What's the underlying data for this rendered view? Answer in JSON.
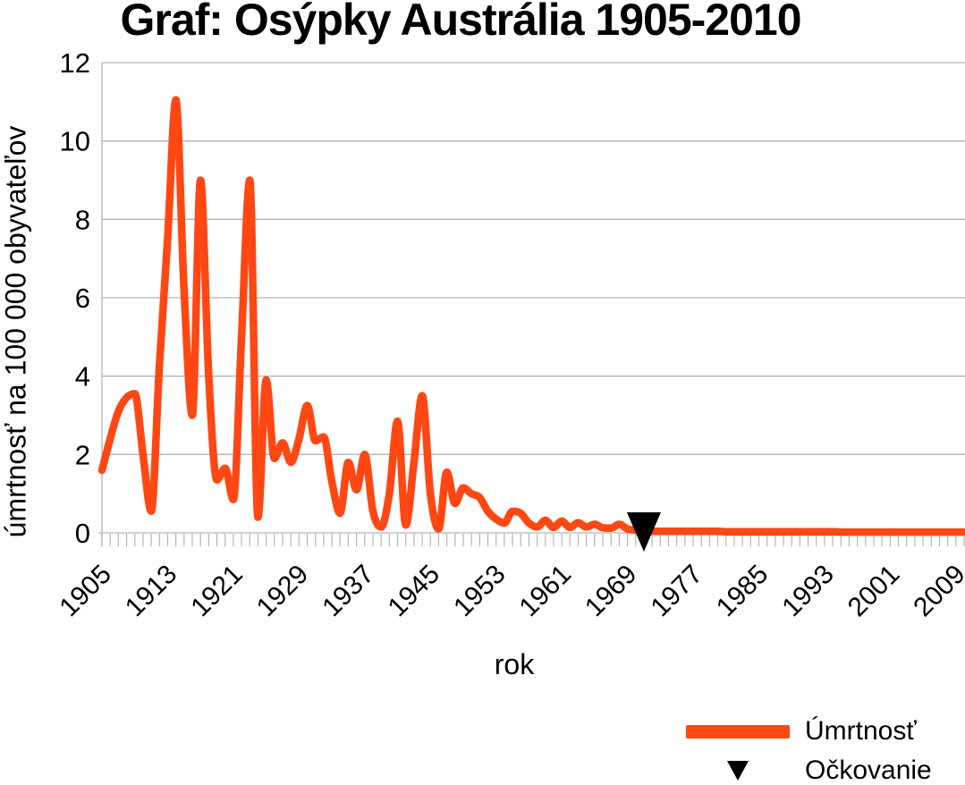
{
  "title": "Graf: Osýpky Austrália 1905-2010",
  "colors": {
    "line": "#FF4713",
    "marker": "#000000",
    "grid": "#b3b3b3",
    "tick": "#b3b3b3",
    "text": "#000000"
  },
  "legend": {
    "mortality_label": "Úmrtnosť",
    "vaccination_label": "Očkovanie"
  },
  "chart_data": {
    "type": "line",
    "title": "Graf: Osýpky Austrália 1905-2010",
    "xlabel": "rok",
    "ylabel": "úmrtnosť na 100 000 obyvateľov",
    "x_start": 1905,
    "x_end": 2010,
    "x_step": 1,
    "ylim": [
      0,
      12
    ],
    "yticks": [
      0,
      2,
      4,
      6,
      8,
      10,
      12
    ],
    "xtick_labels": [
      "1905",
      "1913",
      "1921",
      "1929",
      "1937",
      "1945",
      "1953",
      "1961",
      "1969",
      "1977",
      "1985",
      "1993",
      "2001",
      "2009"
    ],
    "grid": "horizontal",
    "legend_position": "bottom-right",
    "series": [
      {
        "name": "Úmrtnosť",
        "color": "#FF4713",
        "style": "smooth-line",
        "stroke_width": 8.5,
        "values": [
          1.6,
          2.4,
          3.1,
          3.45,
          3.55,
          2.0,
          0.55,
          4.3,
          7.5,
          11.05,
          6.2,
          3.0,
          9.0,
          4.0,
          1.35,
          1.65,
          0.85,
          5.0,
          9.0,
          0.4,
          3.9,
          1.9,
          2.3,
          1.8,
          2.4,
          3.25,
          2.35,
          2.45,
          1.3,
          0.5,
          1.8,
          1.1,
          2.0,
          0.55,
          0.15,
          1.0,
          2.85,
          0.2,
          1.8,
          3.5,
          1.0,
          0.1,
          1.55,
          0.75,
          1.15,
          1.0,
          0.9,
          0.55,
          0.35,
          0.25,
          0.55,
          0.5,
          0.25,
          0.15,
          0.32,
          0.14,
          0.3,
          0.14,
          0.26,
          0.15,
          0.22,
          0.13,
          0.12,
          0.22,
          0.1,
          0.07,
          0.05,
          0.04,
          0.04,
          0.04,
          0.04,
          0.04,
          0.04,
          0.04,
          0.04,
          0.04,
          0.03,
          0.03,
          0.03,
          0.03,
          0.03,
          0.03,
          0.03,
          0.03,
          0.03,
          0.03,
          0.03,
          0.03,
          0.03,
          0.03,
          0.02,
          0.02,
          0.02,
          0.02,
          0.02,
          0.02,
          0.02,
          0.02,
          0.02,
          0.02,
          0.02,
          0.02,
          0.02,
          0.02,
          0.02,
          0.02
        ]
      }
    ],
    "markers": [
      {
        "name": "Očkovanie",
        "shape": "triangle-down",
        "color": "#000000",
        "x": 1971,
        "y": 0
      }
    ]
  }
}
